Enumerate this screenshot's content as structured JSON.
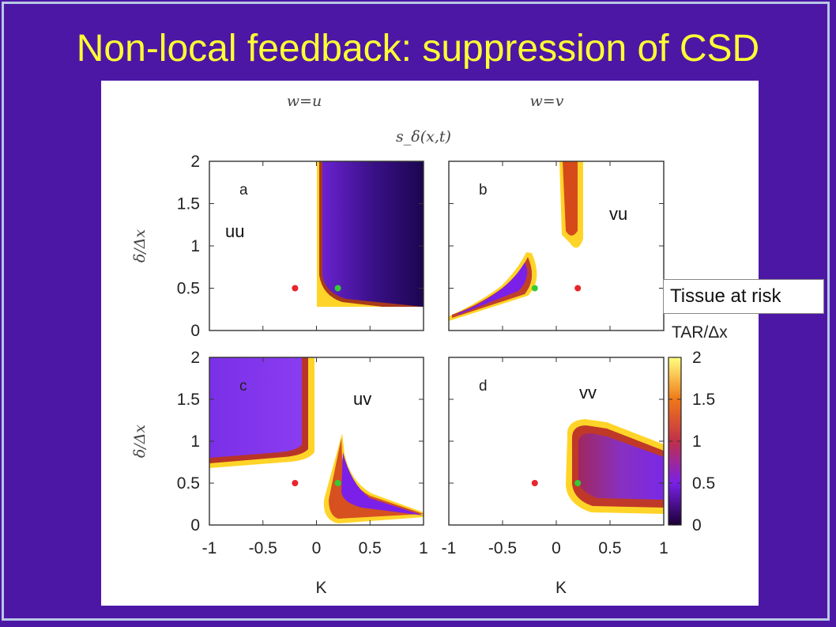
{
  "slide": {
    "title": "Non-local feedback: suppression of CSD",
    "annotation": "Tissue at risk"
  },
  "colors": {
    "background": "#4d17a6",
    "title": "#ffff33",
    "red_dot": "#e8242c",
    "green_dot": "#33cc33"
  },
  "chart_data": {
    "type": "heatmap",
    "column_headers": [
      "w=u",
      "w=v"
    ],
    "signal_label": "s_δ(x,t)",
    "xlabel": "K",
    "ylabel": "δ/Δx",
    "xlim": [
      -1,
      1
    ],
    "ylim": [
      0,
      2
    ],
    "xticks": [
      "-1",
      "-0.5",
      "0",
      "0.5",
      "1"
    ],
    "yticks": [
      "0",
      "0.5",
      "1",
      "1.5",
      "2"
    ],
    "colorbar": {
      "label": "TAR/Δx",
      "range": [
        0,
        2
      ],
      "ticks": [
        "0",
        "0.5",
        "1",
        "1.5",
        "2"
      ],
      "colormap": "black-purple-red-yellow"
    },
    "panels": [
      {
        "id": "a",
        "combo": "uu",
        "red_dot": [
          -0.2,
          0.5
        ],
        "green_dot": [
          0.2,
          0.5
        ]
      },
      {
        "id": "b",
        "combo": "vu",
        "red_dot": [
          0.2,
          0.5
        ],
        "green_dot": [
          -0.2,
          0.5
        ]
      },
      {
        "id": "c",
        "combo": "uv",
        "red_dot": [
          -0.2,
          0.5
        ],
        "green_dot": [
          0.2,
          0.5
        ]
      },
      {
        "id": "d",
        "combo": "vv",
        "red_dot": [
          -0.2,
          0.5
        ],
        "green_dot": [
          0.2,
          0.5
        ]
      }
    ]
  }
}
